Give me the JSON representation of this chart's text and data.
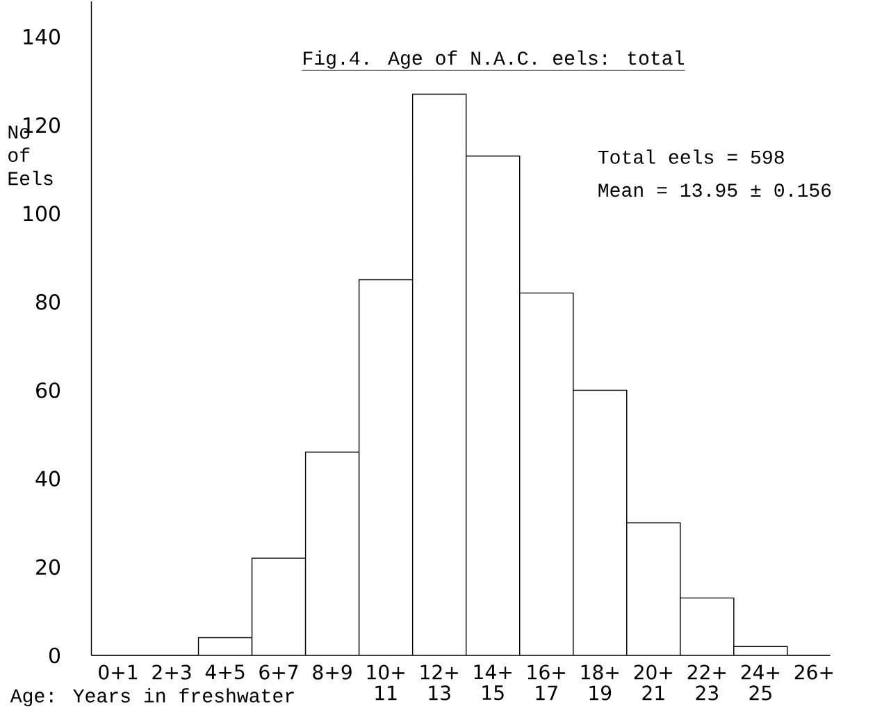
{
  "chart_data": {
    "type": "bar",
    "title": "Fig.4. Age of N.A.C. eels: total",
    "xlabel": "Age: Years in freshwater",
    "ylabel": "No of Eels",
    "categories": [
      "0+1",
      "2+3",
      "4+5",
      "6+7",
      "8+9",
      "10+ 11",
      "12+ 13",
      "14+ 15",
      "16+ 17",
      "18+ 19",
      "20+ 21",
      "22+ 23",
      "24+ 25",
      "26+"
    ],
    "values": [
      0,
      0,
      4,
      22,
      46,
      85,
      127,
      113,
      82,
      60,
      30,
      13,
      2,
      0
    ],
    "color": "#000000",
    "ylim": [
      0,
      148
    ],
    "yticks": [
      0,
      20,
      40,
      60,
      80,
      100,
      120,
      140
    ],
    "grid": false,
    "annotations": [
      "Total eels = 598",
      "Mean = 13.95 ± 0.156"
    ]
  }
}
